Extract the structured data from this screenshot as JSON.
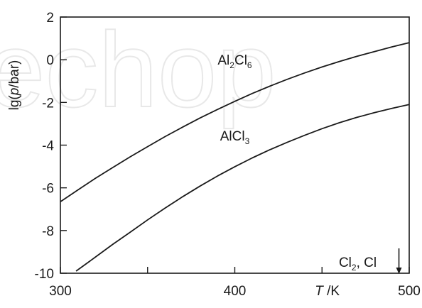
{
  "watermark": "echop",
  "chart_data": {
    "type": "line",
    "ylabel": {
      "prefix": "lg(",
      "var": "p",
      "suffix": "/bar)"
    },
    "xlabel": {
      "var": "T",
      "suffix": " /K"
    },
    "xlim": [
      300,
      500
    ],
    "ylim": [
      -10,
      2
    ],
    "x_ticks": [
      300,
      350,
      400,
      450,
      500
    ],
    "x_tick_labels": [
      "300",
      "",
      "400",
      "",
      "500"
    ],
    "y_ticks": [
      2,
      0,
      -2,
      -4,
      -6,
      -8,
      -10
    ],
    "y_tick_labels": [
      "2",
      "0",
      "-2",
      "-4",
      "-6",
      "-8",
      "-10"
    ],
    "grid": false,
    "series": [
      {
        "name": "Al2Cl6",
        "label_parts": [
          [
            "Al",
            ""
          ],
          [
            "2",
            "sub"
          ],
          [
            "Cl",
            ""
          ],
          [
            "6",
            "sub"
          ]
        ],
        "label_at": [
          400,
          0.0
        ],
        "x": [
          300,
          310,
          320,
          330,
          340,
          350,
          360,
          370,
          380,
          390,
          400,
          410,
          420,
          430,
          440,
          450,
          460,
          470,
          480,
          490,
          500
        ],
        "y": [
          -6.65,
          -6.1,
          -5.56,
          -5.05,
          -4.55,
          -4.07,
          -3.6,
          -3.16,
          -2.73,
          -2.33,
          -1.95,
          -1.58,
          -1.24,
          -0.92,
          -0.62,
          -0.34,
          -0.08,
          0.16,
          0.38,
          0.6,
          0.8
        ]
      },
      {
        "name": "AlCl3",
        "label_parts": [
          [
            "AlCl",
            ""
          ],
          [
            "3",
            "sub"
          ]
        ],
        "label_at": [
          400,
          -3.55
        ],
        "x": [
          309,
          320,
          330,
          340,
          350,
          360,
          370,
          380,
          390,
          400,
          410,
          420,
          430,
          440,
          450,
          460,
          470,
          480,
          490,
          500
        ],
        "y": [
          -9.9,
          -9.25,
          -8.65,
          -8.08,
          -7.5,
          -6.95,
          -6.42,
          -5.92,
          -5.45,
          -5.01,
          -4.6,
          -4.22,
          -3.87,
          -3.54,
          -3.23,
          -2.95,
          -2.7,
          -2.48,
          -2.28,
          -2.1
        ]
      }
    ],
    "annotations": [
      {
        "parts": [
          [
            "Cl",
            ""
          ],
          [
            "2",
            "sub"
          ],
          [
            ", Cl",
            ""
          ]
        ],
        "at": [
          455,
          -9.7
        ],
        "arrow": "down"
      }
    ]
  }
}
